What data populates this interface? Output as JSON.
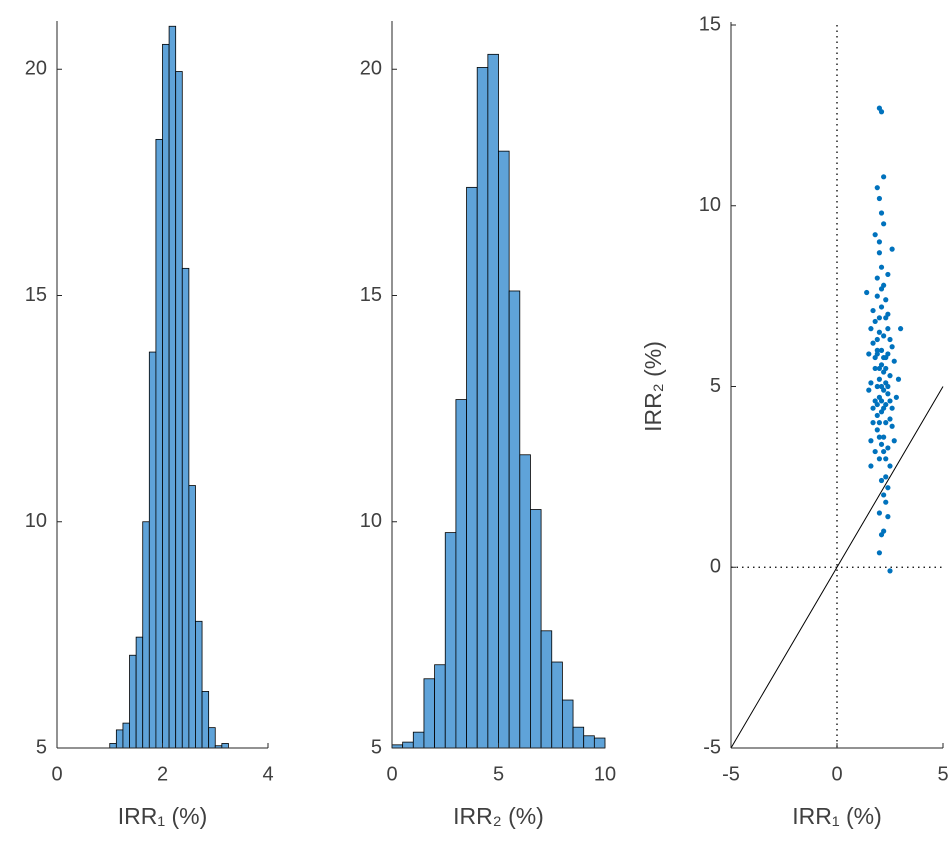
{
  "chart_data": [
    {
      "type": "histogram",
      "xlabel": "IRR₁ (%)",
      "color": "#5fa3d9",
      "bins": [
        1.0,
        1.125,
        1.25,
        1.375,
        1.5,
        1.625,
        1.75,
        1.875,
        2.0,
        2.125,
        2.25,
        2.375,
        2.5,
        2.625,
        2.75,
        2.875,
        3.0,
        3.125,
        3.25
      ],
      "values": [
        5.1,
        5.4,
        5.55,
        7.05,
        7.45,
        10.0,
        13.75,
        18.45,
        20.55,
        20.95,
        19.95,
        15.6,
        10.8,
        7.8,
        6.25,
        5.45,
        5.05,
        5.1
      ],
      "xlim": [
        0,
        4
      ],
      "xticks": [
        0,
        2,
        4
      ],
      "ylim": [
        5,
        21
      ],
      "yticks": [
        5,
        10,
        15,
        20
      ]
    },
    {
      "type": "histogram",
      "xlabel": "IRR₂ (%)",
      "color": "#5fa3d9",
      "bins": [
        0,
        0.5,
        1,
        1.5,
        2,
        2.5,
        3,
        3.5,
        4,
        4.5,
        5,
        5.5,
        6,
        6.5,
        7,
        7.5,
        8,
        8.5,
        9,
        9.5,
        10
      ],
      "values": [
        5.07,
        5.13,
        5.35,
        6.53,
        6.84,
        9.76,
        12.7,
        17.39,
        20.04,
        20.33,
        18.19,
        15.1,
        11.48,
        10.27,
        7.59,
        6.9,
        6.06,
        5.46,
        5.27,
        5.22
      ],
      "xlim": [
        0,
        10
      ],
      "xticks": [
        0,
        5,
        10
      ],
      "ylim": [
        5,
        21
      ],
      "yticks": [
        5,
        10,
        15,
        20
      ]
    },
    {
      "type": "scatter",
      "xlabel": "IRR₁ (%)",
      "ylabel": "IRR₂ (%)",
      "color": "#0072bd",
      "x": [
        2.1,
        1.9,
        2.3,
        2.0,
        2.2,
        1.8,
        2.4,
        2.1,
        1.7,
        2.5,
        2.0,
        2.3,
        1.9,
        2.2,
        2.6,
        1.6,
        2.1,
        2.4,
        1.8,
        2.0,
        2.3,
        2.2,
        1.9,
        2.5,
        2.1,
        1.7,
        2.0,
        2.4,
        2.2,
        1.9,
        2.3,
        2.0,
        2.6,
        1.8,
        2.1,
        2.4,
        2.2,
        1.6,
        2.0,
        2.5,
        2.1,
        1.9,
        2.3,
        2.7,
        1.5,
        2.2,
        2.0,
        2.4,
        1.8,
        2.1,
        2.3,
        2.0,
        2.2,
        1.9,
        2.6,
        1.7,
        2.1,
        2.4,
        2.0,
        2.2,
        1.8,
        2.5,
        2.3,
        1.9,
        2.1,
        2.7,
        1.6,
        2.0,
        2.2,
        2.4,
        1.9,
        2.3,
        2.1,
        2.8,
        1.4,
        3.0,
        2.0,
        2.1,
        2.5,
        2.0,
        2.2,
        1.9,
        2.3,
        1.6,
        2.6,
        1.8,
        2.4,
        2.1,
        2.9,
        1.5,
        2.0,
        2.2,
        2.3,
        1.7,
        2.1,
        2.4,
        2.0,
        1.9,
        2.2,
        2.5
      ],
      "y": [
        5.0,
        4.2,
        5.8,
        6.5,
        3.6,
        5.5,
        4.8,
        7.2,
        4.0,
        5.3,
        3.0,
        6.9,
        5.9,
        4.4,
        6.1,
        5.1,
        8.3,
        3.3,
        6.8,
        4.7,
        2.5,
        7.8,
        3.8,
        4.1,
        5.6,
        6.2,
        9.0,
        5.0,
        2.0,
        7.5,
        4.5,
        5.2,
        3.9,
        4.6,
        6.0,
        7.0,
        5.4,
        3.5,
        8.7,
        2.8,
        4.3,
        6.3,
        5.1,
        5.7,
        4.9,
        9.5,
        1.5,
        6.6,
        3.2,
        7.7,
        3.0,
        10.2,
        1.0,
        5.0,
        4.4,
        7.1,
        2.4,
        8.1,
        4.0,
        6.4,
        5.8,
        6.3,
        4.0,
        8.0,
        3.4,
        3.5,
        6.6,
        5.5,
        4.9,
        2.2,
        4.5,
        7.4,
        9.8,
        4.7,
        7.6,
        6.6,
        12.7,
        12.6,
        -0.1,
        0.4,
        10.8,
        10.5,
        1.8,
        2.8,
        8.8,
        9.2,
        1.4,
        0.9,
        5.2,
        5.9,
        6.9,
        3.2,
        5.5,
        4.4,
        4.6,
        5.9,
        3.6,
        6.0,
        5.8,
        4.6
      ],
      "xlim": [
        -5,
        5
      ],
      "xticks": [
        -5,
        0,
        5
      ],
      "ylim": [
        -5,
        15
      ],
      "yticks": [
        -5,
        0,
        5,
        10,
        15
      ]
    }
  ]
}
